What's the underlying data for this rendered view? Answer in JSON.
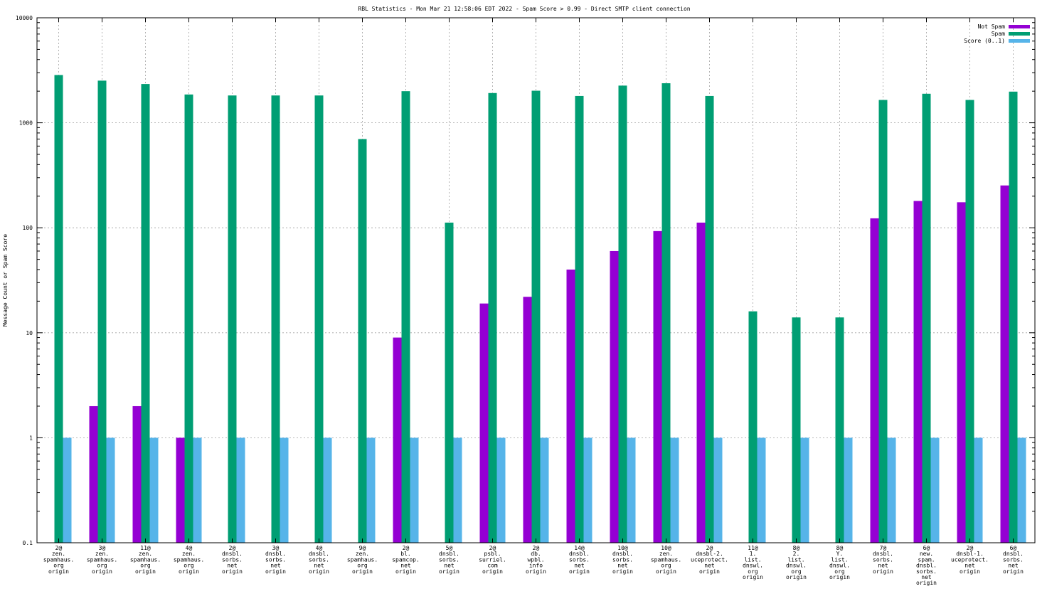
{
  "chart_data": {
    "type": "bar",
    "title": "RBL Statistics - Mon Mar 21 12:58:06 EDT 2022 - Spam Score > 0.99 - Direct SMTP client connection",
    "xlabel": "",
    "ylabel": "Message Count or Spam Score",
    "yscale": "log",
    "ylim": [
      0.1,
      10000
    ],
    "yticks": [
      "0.1",
      "1",
      "10",
      "100",
      "1000",
      "10000"
    ],
    "grid": true,
    "legend_position": "top-right",
    "categories": [
      [
        "2@",
        "zen.",
        "spamhaus.",
        "org",
        "origin"
      ],
      [
        "3@",
        "zen.",
        "spamhaus.",
        "org",
        "origin"
      ],
      [
        "11@",
        "zen.",
        "spamhaus.",
        "org",
        "origin"
      ],
      [
        "4@",
        "zen.",
        "spamhaus.",
        "org",
        "origin"
      ],
      [
        "2@",
        "dnsbl.",
        "sorbs.",
        "net",
        "origin"
      ],
      [
        "3@",
        "dnsbl.",
        "sorbs.",
        "net",
        "origin"
      ],
      [
        "4@",
        "dnsbl.",
        "sorbs.",
        "net",
        "origin"
      ],
      [
        "9@",
        "zen.",
        "spamhaus.",
        "org",
        "origin"
      ],
      [
        "2@",
        "bl.",
        "spamcop.",
        "net",
        "origin"
      ],
      [
        "5@",
        "dnsbl.",
        "sorbs.",
        "net",
        "origin"
      ],
      [
        "2@",
        "psbl.",
        "surriel.",
        "com",
        "origin"
      ],
      [
        "2@",
        "db.",
        "wpbl.",
        "info",
        "origin"
      ],
      [
        "14@",
        "dnsbl.",
        "sorbs.",
        "net",
        "origin"
      ],
      [
        "10@",
        "dnsbl.",
        "sorbs.",
        "net",
        "origin"
      ],
      [
        "10@",
        "zen.",
        "spamhaus.",
        "org",
        "origin"
      ],
      [
        "2@",
        "dnsbl-2.",
        "uceprotect.",
        "net",
        "origin"
      ],
      [
        "11@",
        "1.",
        "list.",
        "dnswl.",
        "org",
        "origin"
      ],
      [
        "8@",
        "2.",
        "list.",
        "dnswl.",
        "org",
        "origin"
      ],
      [
        "8@",
        "Y.",
        "list.",
        "dnswl.",
        "org",
        "origin"
      ],
      [
        "7@",
        "dnsbl.",
        "sorbs.",
        "net",
        "origin"
      ],
      [
        "6@",
        "new.",
        "spam.",
        "dnsbl.",
        "sorbs.",
        "net",
        "origin"
      ],
      [
        "2@",
        "dnsbl-1.",
        "uceprotect.",
        "net",
        "origin"
      ],
      [
        "6@",
        "dnsbl.",
        "sorbs.",
        "net",
        "origin"
      ]
    ],
    "series": [
      {
        "name": "Not Spam",
        "color": "#9400d3",
        "values": [
          null,
          2,
          2,
          1,
          null,
          null,
          null,
          null,
          9,
          null,
          19,
          22,
          40,
          60,
          93,
          112,
          null,
          null,
          null,
          123,
          180,
          175,
          253
        ]
      },
      {
        "name": "Spam",
        "color": "#009e73",
        "values": [
          2850,
          2520,
          2340,
          1860,
          1820,
          1820,
          1820,
          700,
          2000,
          112,
          1920,
          2020,
          1800,
          2260,
          2380,
          1800,
          16,
          14,
          14,
          1650,
          1890,
          1650,
          1980
        ]
      },
      {
        "name": "Score (0..1)",
        "color": "#56b4e9",
        "values": [
          1,
          1,
          1,
          1,
          1,
          1,
          1,
          1,
          1,
          1,
          1,
          1,
          1,
          1,
          1,
          1,
          1,
          1,
          1,
          1,
          1,
          1,
          1
        ]
      }
    ]
  }
}
